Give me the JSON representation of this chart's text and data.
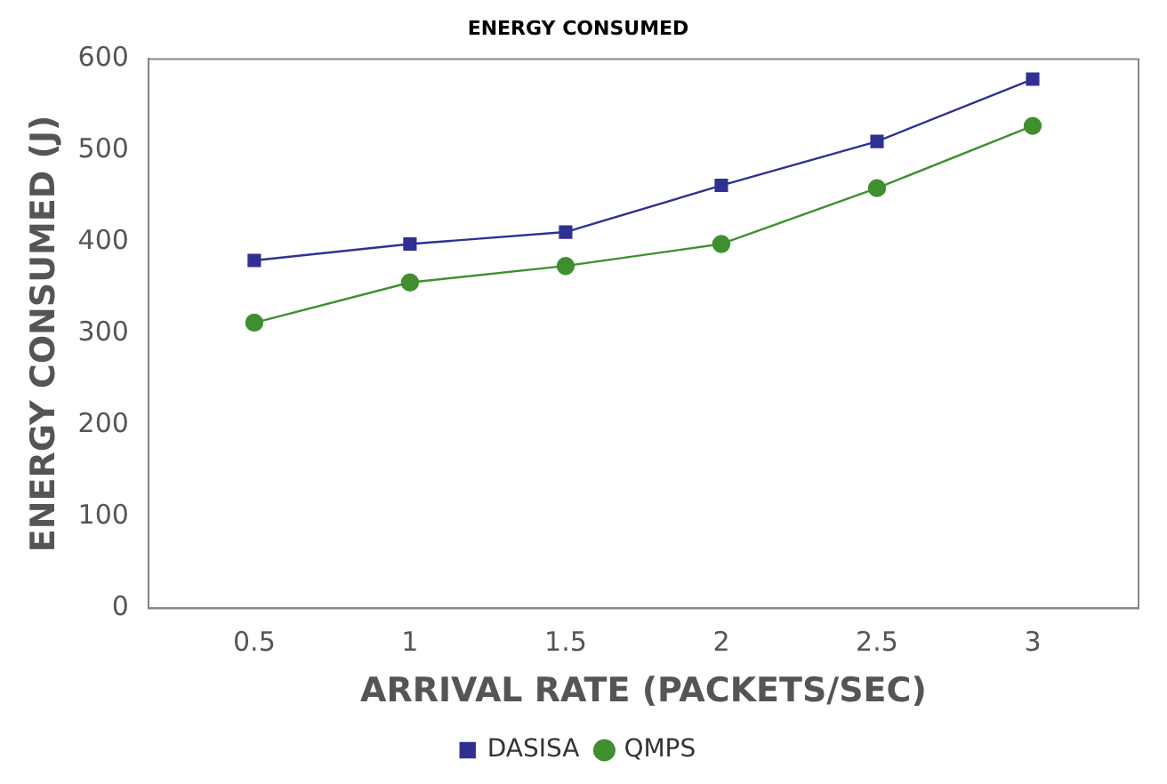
{
  "chart_data": {
    "type": "line",
    "title": "ENERGY CONSUMED",
    "xlabel": "ARRIVAL RATE (PACKETS/SEC)",
    "ylabel": "ENERGY CONSUMED (J)",
    "x": [
      0.5,
      1,
      1.5,
      2,
      2.5,
      3
    ],
    "series": [
      {
        "name": "DASISA",
        "color": "#2e3192",
        "marker": "square",
        "values": [
          380,
          398,
          411,
          462,
          510,
          578
        ]
      },
      {
        "name": "QMPS",
        "color": "#3f8f2f",
        "marker": "circle",
        "values": [
          312,
          356,
          374,
          398,
          459,
          527
        ]
      }
    ],
    "xlim": [
      0.16,
      3.34
    ],
    "xticks": [
      0.5,
      1,
      1.5,
      2,
      2.5,
      3
    ],
    "ylim": [
      0,
      600
    ],
    "yticks": [
      0,
      100,
      200,
      300,
      400,
      500,
      600
    ],
    "grid": false,
    "legend": "bottom"
  }
}
